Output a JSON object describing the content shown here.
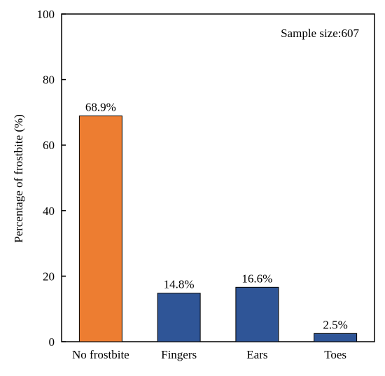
{
  "chart_data": {
    "type": "bar",
    "categories": [
      "No frostbite",
      "Fingers",
      "Ears",
      "Toes"
    ],
    "values": [
      68.9,
      14.8,
      16.6,
      2.5
    ],
    "data_labels": [
      "68.9%",
      "14.8%",
      "16.6%",
      "2.5%"
    ],
    "bar_colors": [
      "#ED7D31",
      "#2F5597",
      "#2F5597",
      "#2F5597"
    ],
    "bar_edge_color": "#000000",
    "ylabel": "Percentage of frostbite (%)",
    "xlabel": "",
    "ylim": [
      0,
      100
    ],
    "yticks": [
      0,
      20,
      40,
      60,
      80,
      100
    ],
    "annotation": "Sample size:607",
    "annotation_position": "top-right",
    "grid": false,
    "legend": "none"
  }
}
